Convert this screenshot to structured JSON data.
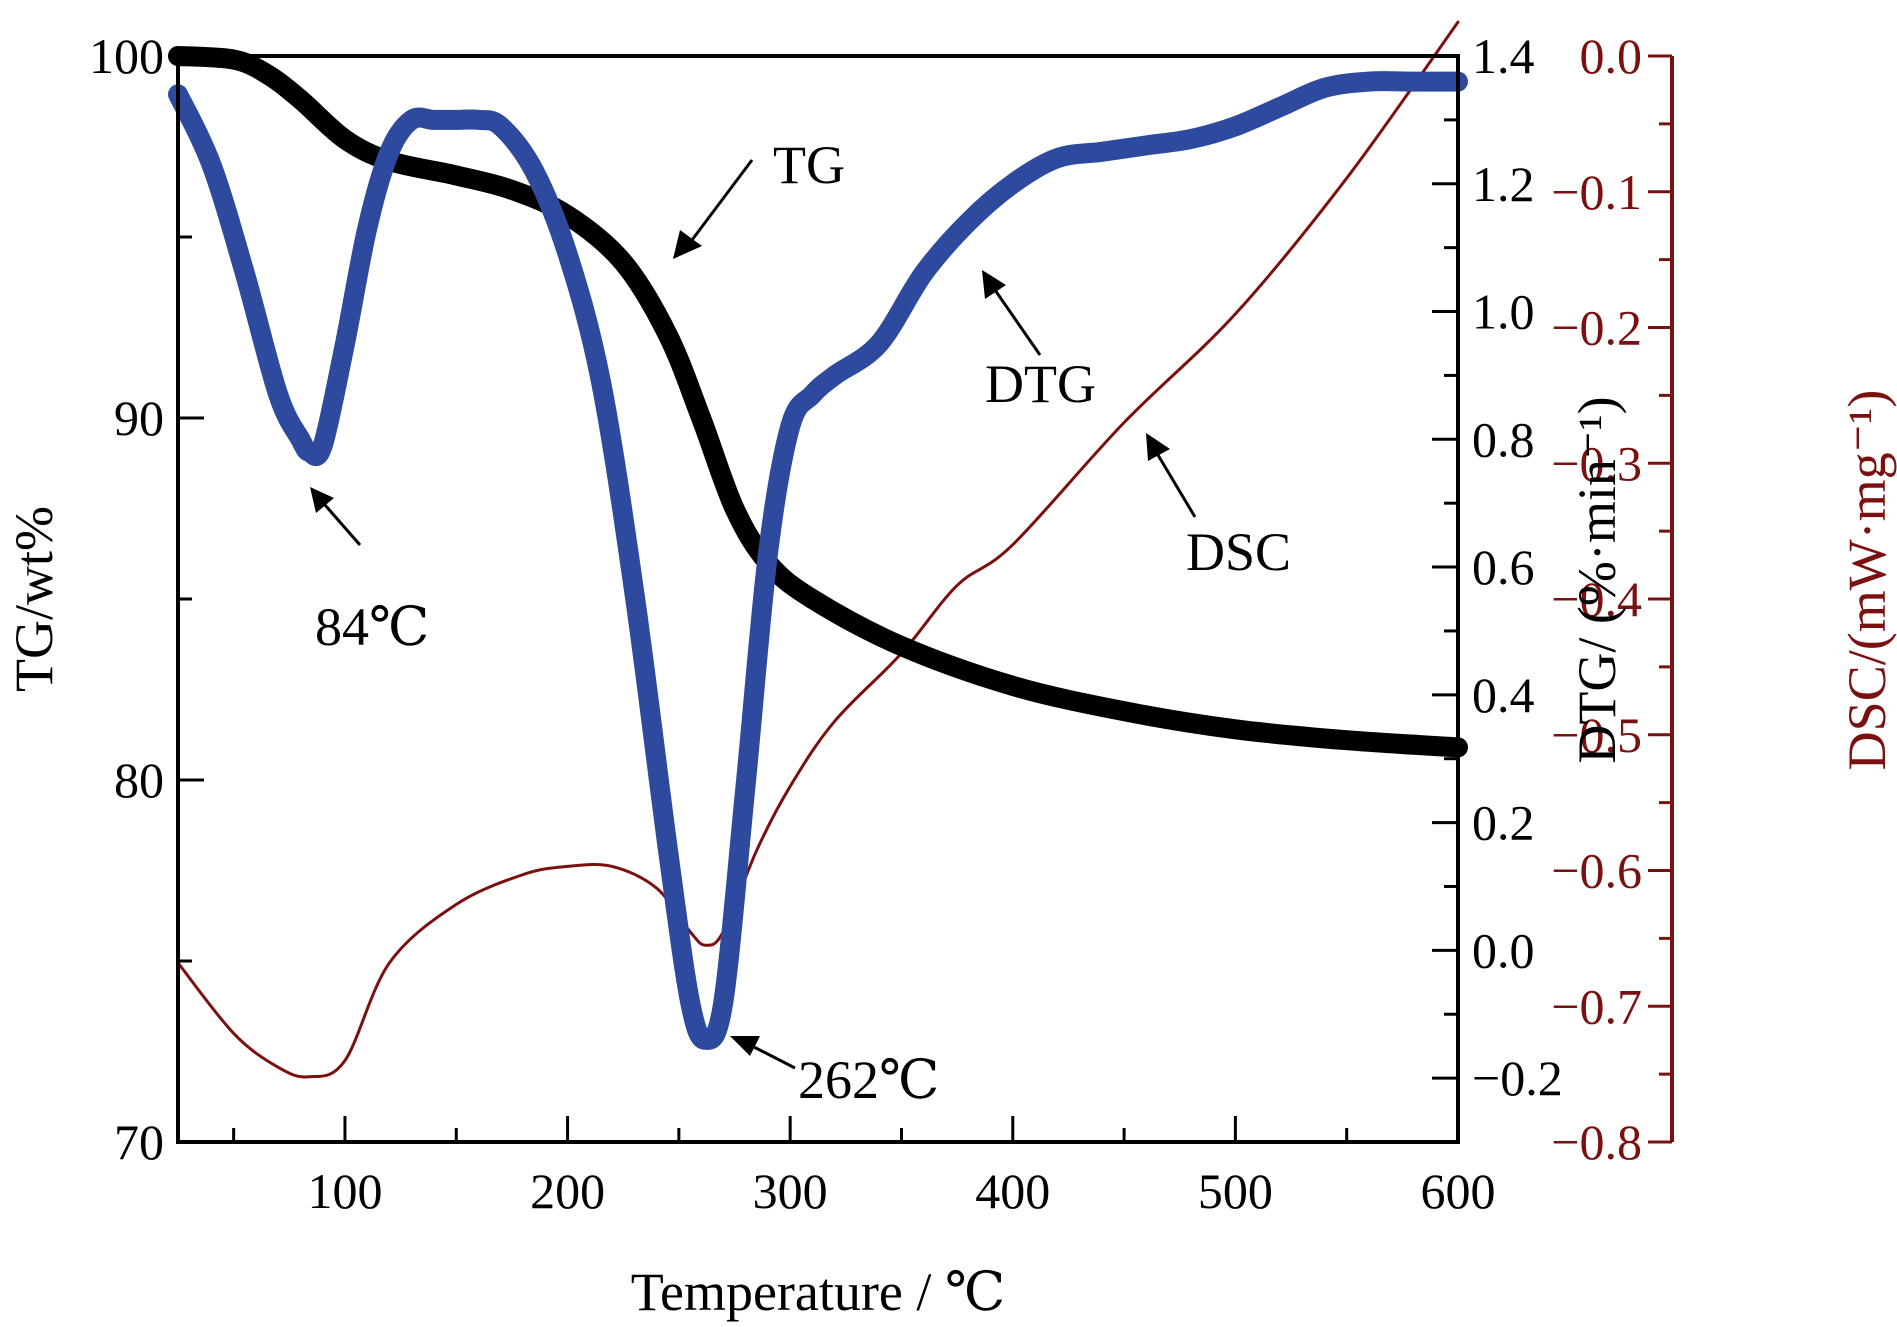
{
  "chart_data": {
    "type": "line",
    "xlabel": "Temperature / ℃",
    "xlim": [
      25,
      600
    ],
    "x_ticks": [
      100,
      200,
      300,
      400,
      500,
      600
    ],
    "axes": {
      "tg": {
        "label": "TG/wt%",
        "ylim": [
          70,
          100
        ],
        "ticks": [
          70,
          80,
          90,
          100
        ]
      },
      "dtg": {
        "label": "DTG/ (%·min⁻¹)",
        "ylim": [
          -0.3,
          1.4
        ],
        "ticks": [
          -0.2,
          0.0,
          0.2,
          0.4,
          0.6,
          0.8,
          1.0,
          1.2,
          1.4
        ],
        "tick_labels": [
          "−0.2",
          "0.0",
          "0.2",
          "0.4",
          "0.6",
          "0.8",
          "1.0",
          "1.2",
          "1.4"
        ]
      },
      "dsc": {
        "label": "DSC/(mW·mg⁻¹)",
        "ylim": [
          -0.8,
          0.0
        ],
        "ticks": [
          -0.8,
          -0.7,
          -0.6,
          -0.5,
          -0.4,
          -0.3,
          -0.2,
          -0.1,
          0.0
        ],
        "tick_labels": [
          "−0.8",
          "−0.7",
          "−0.6",
          "−0.5",
          "−0.4",
          "−0.3",
          "−0.2",
          "−0.1",
          "0.0"
        ],
        "color": "#7a1010"
      }
    },
    "series": [
      {
        "name": "TG",
        "axis": "tg",
        "color": "#000000",
        "x": [
          25,
          50,
          65,
          80,
          100,
          120,
          150,
          175,
          200,
          225,
          245,
          260,
          275,
          290,
          310,
          350,
          400,
          450,
          500,
          550,
          600
        ],
        "y": [
          100,
          99.9,
          99.5,
          98.8,
          97.7,
          97.1,
          96.7,
          96.3,
          95.6,
          94.3,
          92.3,
          90.0,
          87.5,
          86.0,
          85.0,
          83.7,
          82.6,
          81.9,
          81.4,
          81.1,
          80.9
        ]
      },
      {
        "name": "DTG",
        "axis": "dtg",
        "color": "#2e4a9e",
        "x": [
          25,
          40,
          55,
          70,
          80,
          84,
          90,
          100,
          110,
          120,
          130,
          140,
          150,
          160,
          170,
          185,
          200,
          215,
          230,
          245,
          255,
          262,
          270,
          280,
          290,
          300,
          310,
          320,
          340,
          360,
          380,
          400,
          420,
          440,
          460,
          480,
          500,
          520,
          540,
          560,
          580,
          600
        ],
        "y": [
          1.34,
          1.23,
          1.06,
          0.87,
          0.8,
          0.78,
          0.79,
          0.95,
          1.13,
          1.25,
          1.3,
          1.3,
          1.3,
          1.3,
          1.29,
          1.22,
          1.09,
          0.89,
          0.56,
          0.16,
          -0.08,
          -0.14,
          -0.08,
          0.26,
          0.62,
          0.82,
          0.87,
          0.9,
          0.95,
          1.06,
          1.14,
          1.2,
          1.24,
          1.25,
          1.26,
          1.27,
          1.29,
          1.32,
          1.35,
          1.36,
          1.36,
          1.36
        ]
      },
      {
        "name": "DSC",
        "axis": "dsc",
        "color": "#7a1010",
        "x": [
          25,
          50,
          70,
          84,
          100,
          120,
          150,
          180,
          200,
          220,
          240,
          255,
          262,
          270,
          285,
          300,
          320,
          350,
          375,
          400,
          450,
          500,
          550,
          600
        ],
        "y": [
          -0.668,
          -0.72,
          -0.745,
          -0.752,
          -0.74,
          -0.668,
          -0.625,
          -0.603,
          -0.597,
          -0.597,
          -0.613,
          -0.645,
          -0.655,
          -0.645,
          -0.585,
          -0.538,
          -0.49,
          -0.44,
          -0.39,
          -0.36,
          -0.27,
          -0.19,
          -0.09,
          0.025
        ]
      }
    ],
    "annotations": [
      {
        "text": "TG",
        "target": "TG"
      },
      {
        "text": "DTG",
        "target": "DTG"
      },
      {
        "text": "DSC",
        "target": "DSC"
      },
      {
        "text": "84℃",
        "target": "DTG minimum"
      },
      {
        "text": "262℃",
        "target": "DTG minimum"
      }
    ]
  }
}
